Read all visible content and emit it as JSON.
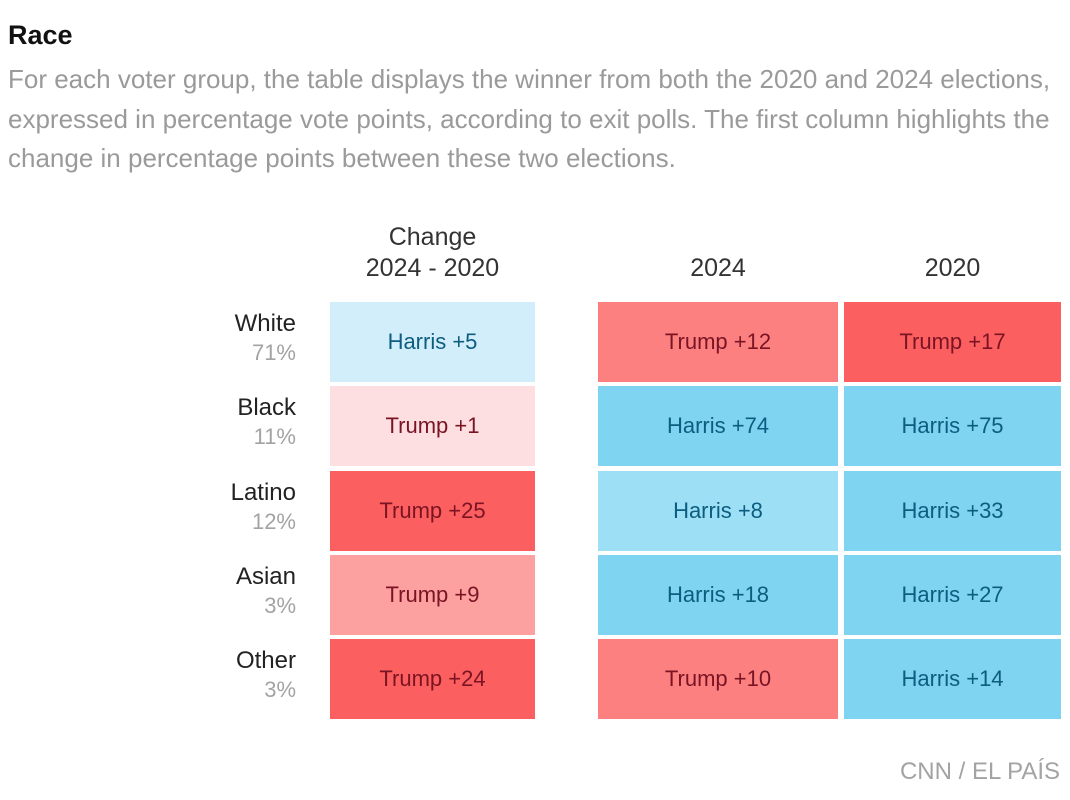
{
  "header": {
    "title": "Race",
    "subtitle": "For each voter group, the table displays the winner from both the 2020 and 2024 elections, expressed in percentage vote points, according to exit polls. The first column highlights the change in percentage points between these two elections."
  },
  "columns": {
    "change_line1": "Change",
    "change_line2": "2024 - 2020",
    "y2024": "2024",
    "y2020": "2020"
  },
  "rows": [
    {
      "name": "White",
      "share": "71%"
    },
    {
      "name": "Black",
      "share": "11%"
    },
    {
      "name": "Latino",
      "share": "12%"
    },
    {
      "name": "Asian",
      "share": "3%"
    },
    {
      "name": "Other",
      "share": "3%"
    }
  ],
  "colors": {
    "harris_text": "#0d5d80",
    "trump_text": "#7a1424",
    "harris_light": "#d2eefb",
    "harris_mid": "#9ddff5",
    "harris_strong": "#7fd4f1",
    "trump_light": "#fddfe1",
    "trump_mid": "#fca0a0",
    "trump_strong": "#fc8080",
    "trump_deep": "#fc5f5f"
  },
  "chart_data": {
    "type": "table",
    "columns": [
      "Change 2024 - 2020",
      "2024",
      "2020"
    ],
    "rows": [
      "White",
      "Black",
      "Latino",
      "Asian",
      "Other"
    ],
    "cells": [
      [
        {
          "label": "Harris +5",
          "winner": "Harris",
          "margin": 5,
          "shade": "harris_light"
        },
        {
          "label": "Trump +12",
          "winner": "Trump",
          "margin": 12,
          "shade": "trump_strong"
        },
        {
          "label": "Trump +17",
          "winner": "Trump",
          "margin": 17,
          "shade": "trump_deep"
        }
      ],
      [
        {
          "label": "Trump +1",
          "winner": "Trump",
          "margin": 1,
          "shade": "trump_light"
        },
        {
          "label": "Harris +74",
          "winner": "Harris",
          "margin": 74,
          "shade": "harris_strong"
        },
        {
          "label": "Harris +75",
          "winner": "Harris",
          "margin": 75,
          "shade": "harris_strong"
        }
      ],
      [
        {
          "label": "Trump +25",
          "winner": "Trump",
          "margin": 25,
          "shade": "trump_deep"
        },
        {
          "label": "Harris +8",
          "winner": "Harris",
          "margin": 8,
          "shade": "harris_mid"
        },
        {
          "label": "Harris +33",
          "winner": "Harris",
          "margin": 33,
          "shade": "harris_strong"
        }
      ],
      [
        {
          "label": "Trump +9",
          "winner": "Trump",
          "margin": 9,
          "shade": "trump_mid"
        },
        {
          "label": "Harris +18",
          "winner": "Harris",
          "margin": 18,
          "shade": "harris_strong"
        },
        {
          "label": "Harris +27",
          "winner": "Harris",
          "margin": 27,
          "shade": "harris_strong"
        }
      ],
      [
        {
          "label": "Trump +24",
          "winner": "Trump",
          "margin": 24,
          "shade": "trump_deep"
        },
        {
          "label": "Trump +10",
          "winner": "Trump",
          "margin": 10,
          "shade": "trump_strong"
        },
        {
          "label": "Harris +14",
          "winner": "Harris",
          "margin": 14,
          "shade": "harris_strong"
        }
      ]
    ]
  },
  "footer": {
    "source": "CNN / EL PAÍS"
  }
}
